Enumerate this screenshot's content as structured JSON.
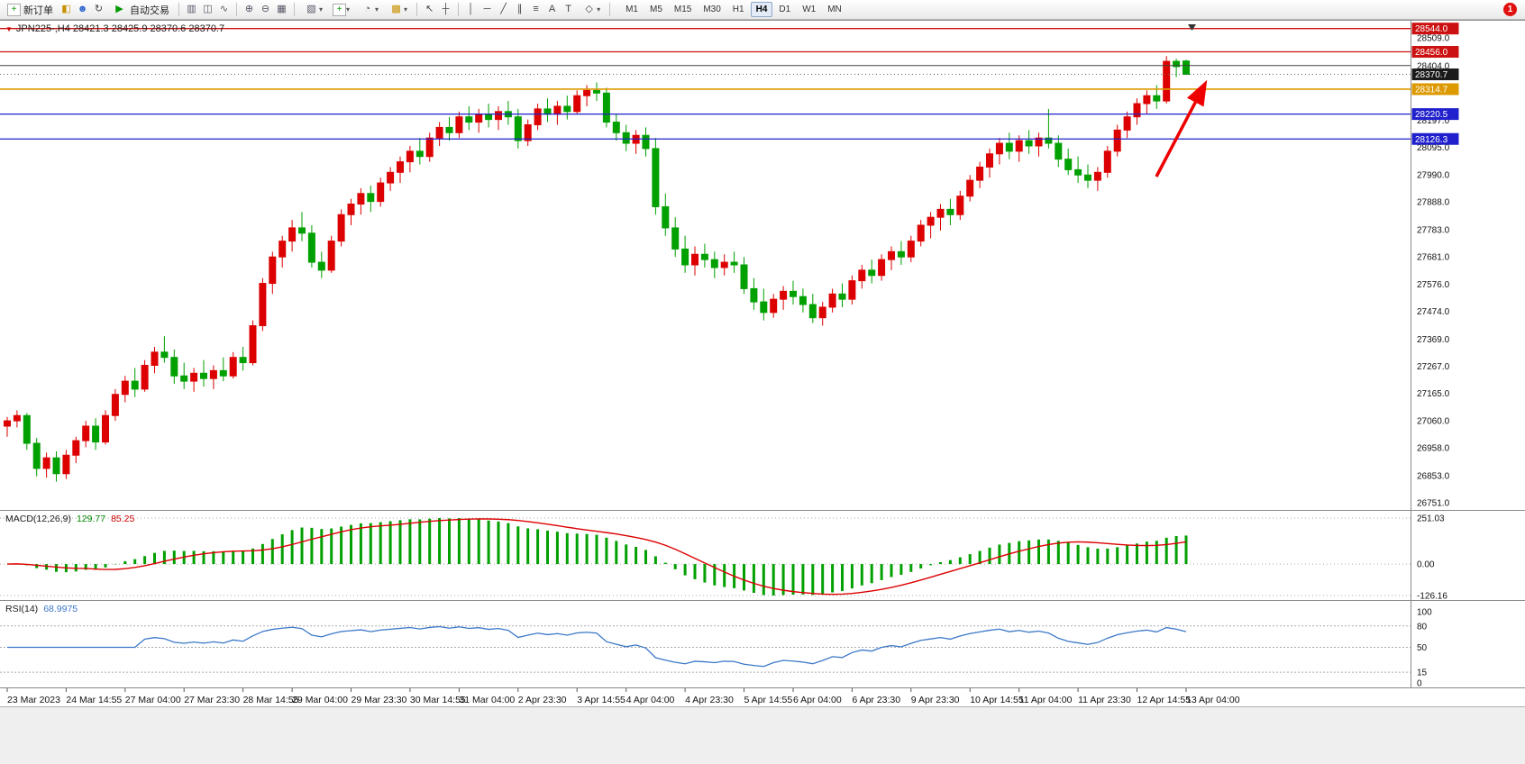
{
  "toolbar": {
    "new_order": "新订单",
    "autotrade": "自动交易",
    "timeframes": [
      "M1",
      "M5",
      "M15",
      "M30",
      "H1",
      "H4",
      "D1",
      "W1",
      "MN"
    ],
    "active_timeframe": "H4",
    "notification_badge": "1"
  },
  "icons": {
    "marker": "▼",
    "new_order": "+",
    "metaeditor": "◧",
    "profile": "☻",
    "refresh": "↻",
    "play": "▶",
    "bars": "▥",
    "candles": "◫",
    "line": "∿",
    "zoom_in": "⊕",
    "zoom_out": "⊖",
    "tile": "▦",
    "new_chart": "▧",
    "indicators": "+",
    "periods": "◔",
    "template": "▩",
    "cursor": "↖",
    "crosshair": "┼",
    "vline": "│",
    "hline": "─",
    "trend": "╱",
    "channel": "∥",
    "fibo": "≡",
    "text": "A",
    "label": "T",
    "shapes": "◇",
    "caret": "▾",
    "shift_marker": "▼"
  },
  "chart": {
    "header": "JPN225-,H4 28421.3 28425.9 28370.6 28370.7",
    "symbol": "JPN225-",
    "timeframe": "H4"
  },
  "indicators": {
    "macd": {
      "name": "MACD(12,26,9)",
      "value_main": "129.77",
      "value_signal": "85.25"
    },
    "rsi": {
      "name": "RSI(14)",
      "value": "68.9975"
    }
  },
  "chart_data": {
    "type": "candlestick",
    "symbol": "JPN225-",
    "timeframe": "H4",
    "ohlc_current": {
      "open": 28421.3,
      "high": 28425.9,
      "low": 28370.6,
      "close": 28370.7
    },
    "price_axis": {
      "max": 28560,
      "min": 26740,
      "labels": [
        "28509.0",
        "28404.0",
        "28197.0",
        "28095.0",
        "27990.0",
        "27888.0",
        "27783.0",
        "27681.0",
        "27576.0",
        "27474.0",
        "27369.0",
        "27267.0",
        "27165.0",
        "27060.0",
        "26958.0",
        "26853.0",
        "26751.0"
      ],
      "badges": [
        {
          "label": "28544.0",
          "color": "#cc1111"
        },
        {
          "label": "28456.0",
          "color": "#cc1111"
        },
        {
          "label": "28370.7",
          "color": "#1a1a1a"
        },
        {
          "label": "28314.7",
          "color": "#dd9900"
        },
        {
          "label": "28220.5",
          "color": "#2020cc"
        },
        {
          "label": "28126.3",
          "color": "#2020cc"
        }
      ]
    },
    "hlines": [
      {
        "price": 28544.0,
        "color": "#cc1111",
        "width": 1.3
      },
      {
        "price": 28456.0,
        "color": "#cc1111",
        "width": 1.3
      },
      {
        "price": 28404.0,
        "color": "#444444",
        "width": 1
      },
      {
        "price": 28314.7,
        "color": "#dd9900",
        "width": 1.6
      },
      {
        "price": 28220.5,
        "color": "#2020cc",
        "width": 1.3
      },
      {
        "price": 28126.3,
        "color": "#2020cc",
        "width": 1.3
      }
    ],
    "current_price": {
      "value": 28370.7,
      "badge_color": "#1a1a1a"
    },
    "colors": {
      "up": "#dd0000",
      "down": "#00a000",
      "macd_hist": "#00a000",
      "macd_signal": "#dd0000",
      "rsi_line": "#3c78c8"
    },
    "macd_axis": {
      "labels": [
        "251.03",
        "0.00",
        "-126.16"
      ]
    },
    "rsi_axis": {
      "labels": [
        "100",
        "80",
        "50",
        "15",
        "0"
      ],
      "levels": [
        80,
        50,
        15
      ]
    },
    "annotation_arrow": {
      "color": "#ee0000"
    },
    "time_labels": [
      [
        0,
        "23 Mar 2023"
      ],
      [
        6,
        "24 Mar 14:55"
      ],
      [
        12,
        "27 Mar 04:00"
      ],
      [
        18,
        "27 Mar 23:30"
      ],
      [
        24,
        "28 Mar 14:55"
      ],
      [
        29,
        "29 Mar 04:00"
      ],
      [
        35,
        "29 Mar 23:30"
      ],
      [
        41,
        "30 Mar 14:55"
      ],
      [
        46,
        "31 Mar 04:00"
      ],
      [
        52,
        "2 Apr 23:30"
      ],
      [
        58,
        "3 Apr 14:55"
      ],
      [
        63,
        "4 Apr 04:00"
      ],
      [
        69,
        "4 Apr 23:30"
      ],
      [
        75,
        "5 Apr 14:55"
      ],
      [
        80,
        "6 Apr 04:00"
      ],
      [
        86,
        "6 Apr 23:30"
      ],
      [
        92,
        "9 Apr 23:30"
      ],
      [
        98,
        "10 Apr 14:55"
      ],
      [
        103,
        "11 Apr 04:00"
      ],
      [
        109,
        "11 Apr 23:30"
      ],
      [
        115,
        "12 Apr 14:55"
      ],
      [
        120,
        "13 Apr 04:00"
      ]
    ],
    "candles": [
      [
        27040,
        27075,
        27000,
        27060
      ],
      [
        27060,
        27100,
        27035,
        27080
      ],
      [
        27080,
        27090,
        26950,
        26975
      ],
      [
        26975,
        26995,
        26850,
        26880
      ],
      [
        26880,
        26940,
        26845,
        26920
      ],
      [
        26920,
        26945,
        26830,
        26860
      ],
      [
        26860,
        26950,
        26840,
        26930
      ],
      [
        26930,
        27000,
        26900,
        26985
      ],
      [
        26985,
        27060,
        26960,
        27040
      ],
      [
        27040,
        27070,
        26950,
        26980
      ],
      [
        26980,
        27100,
        26970,
        27080
      ],
      [
        27080,
        27180,
        27060,
        27160
      ],
      [
        27160,
        27230,
        27130,
        27210
      ],
      [
        27210,
        27260,
        27150,
        27180
      ],
      [
        27180,
        27290,
        27170,
        27270
      ],
      [
        27270,
        27340,
        27240,
        27320
      ],
      [
        27320,
        27380,
        27280,
        27300
      ],
      [
        27300,
        27330,
        27200,
        27230
      ],
      [
        27230,
        27280,
        27180,
        27210
      ],
      [
        27210,
        27260,
        27170,
        27240
      ],
      [
        27240,
        27290,
        27190,
        27220
      ],
      [
        27220,
        27270,
        27180,
        27250
      ],
      [
        27250,
        27300,
        27210,
        27230
      ],
      [
        27230,
        27320,
        27220,
        27300
      ],
      [
        27300,
        27340,
        27250,
        27280
      ],
      [
        27280,
        27440,
        27270,
        27420
      ],
      [
        27420,
        27600,
        27400,
        27580
      ],
      [
        27580,
        27700,
        27540,
        27680
      ],
      [
        27680,
        27760,
        27640,
        27740
      ],
      [
        27740,
        27820,
        27700,
        27790
      ],
      [
        27790,
        27850,
        27740,
        27770
      ],
      [
        27770,
        27800,
        27640,
        27660
      ],
      [
        27660,
        27700,
        27600,
        27630
      ],
      [
        27630,
        27760,
        27620,
        27740
      ],
      [
        27740,
        27860,
        27720,
        27840
      ],
      [
        27840,
        27900,
        27800,
        27880
      ],
      [
        27880,
        27940,
        27840,
        27920
      ],
      [
        27920,
        27950,
        27850,
        27890
      ],
      [
        27890,
        27980,
        27870,
        27960
      ],
      [
        27960,
        28020,
        27930,
        28000
      ],
      [
        28000,
        28060,
        27960,
        28040
      ],
      [
        28040,
        28100,
        28000,
        28080
      ],
      [
        28080,
        28130,
        28030,
        28060
      ],
      [
        28060,
        28150,
        28040,
        28130
      ],
      [
        28130,
        28190,
        28100,
        28170
      ],
      [
        28170,
        28210,
        28120,
        28150
      ],
      [
        28150,
        28230,
        28130,
        28210
      ],
      [
        28210,
        28250,
        28160,
        28190
      ],
      [
        28190,
        28240,
        28150,
        28220
      ],
      [
        28220,
        28260,
        28170,
        28200
      ],
      [
        28200,
        28250,
        28160,
        28230
      ],
      [
        28230,
        28270,
        28180,
        28210
      ],
      [
        28210,
        28240,
        28090,
        28120
      ],
      [
        28120,
        28200,
        28100,
        28180
      ],
      [
        28180,
        28260,
        28160,
        28240
      ],
      [
        28240,
        28280,
        28190,
        28220
      ],
      [
        28220,
        28270,
        28180,
        28250
      ],
      [
        28250,
        28290,
        28200,
        28230
      ],
      [
        28230,
        28310,
        28220,
        28290
      ],
      [
        28290,
        28330,
        28250,
        28310
      ],
      [
        28310,
        28340,
        28270,
        28300
      ],
      [
        28300,
        28320,
        28170,
        28190
      ],
      [
        28190,
        28220,
        28120,
        28150
      ],
      [
        28150,
        28180,
        28080,
        28110
      ],
      [
        28110,
        28160,
        28070,
        28140
      ],
      [
        28140,
        28170,
        28060,
        28090
      ],
      [
        28090,
        28130,
        27840,
        27870
      ],
      [
        27870,
        27920,
        27760,
        27790
      ],
      [
        27790,
        27830,
        27680,
        27710
      ],
      [
        27710,
        27760,
        27620,
        27650
      ],
      [
        27650,
        27720,
        27610,
        27690
      ],
      [
        27690,
        27730,
        27640,
        27670
      ],
      [
        27670,
        27700,
        27600,
        27640
      ],
      [
        27640,
        27690,
        27610,
        27660
      ],
      [
        27660,
        27700,
        27620,
        27650
      ],
      [
        27650,
        27680,
        27540,
        27560
      ],
      [
        27560,
        27600,
        27480,
        27510
      ],
      [
        27510,
        27560,
        27440,
        27470
      ],
      [
        27470,
        27540,
        27450,
        27520
      ],
      [
        27520,
        27570,
        27480,
        27550
      ],
      [
        27550,
        27590,
        27500,
        27530
      ],
      [
        27530,
        27560,
        27470,
        27500
      ],
      [
        27500,
        27540,
        27430,
        27450
      ],
      [
        27450,
        27510,
        27420,
        27490
      ],
      [
        27490,
        27560,
        27470,
        27540
      ],
      [
        27540,
        27580,
        27490,
        27520
      ],
      [
        27520,
        27610,
        27500,
        27590
      ],
      [
        27590,
        27650,
        27560,
        27630
      ],
      [
        27630,
        27670,
        27580,
        27610
      ],
      [
        27610,
        27690,
        27590,
        27670
      ],
      [
        27670,
        27720,
        27630,
        27700
      ],
      [
        27700,
        27740,
        27650,
        27680
      ],
      [
        27680,
        27760,
        27660,
        27740
      ],
      [
        27740,
        27820,
        27720,
        27800
      ],
      [
        27800,
        27850,
        27750,
        27830
      ],
      [
        27830,
        27880,
        27780,
        27860
      ],
      [
        27860,
        27900,
        27800,
        27840
      ],
      [
        27840,
        27930,
        27820,
        27910
      ],
      [
        27910,
        27990,
        27890,
        27970
      ],
      [
        27970,
        28040,
        27940,
        28020
      ],
      [
        28020,
        28090,
        27980,
        28070
      ],
      [
        28070,
        28130,
        28030,
        28110
      ],
      [
        28110,
        28150,
        28050,
        28080
      ],
      [
        28080,
        28140,
        28040,
        28120
      ],
      [
        28120,
        28160,
        28070,
        28100
      ],
      [
        28100,
        28150,
        28060,
        28130
      ],
      [
        28130,
        28240,
        28090,
        28110
      ],
      [
        28110,
        28140,
        28020,
        28050
      ],
      [
        28050,
        28090,
        27990,
        28010
      ],
      [
        28010,
        28060,
        27960,
        27990
      ],
      [
        27990,
        28030,
        27940,
        27970
      ],
      [
        27970,
        28020,
        27930,
        28000
      ],
      [
        28000,
        28100,
        27980,
        28080
      ],
      [
        28080,
        28180,
        28060,
        28160
      ],
      [
        28160,
        28230,
        28130,
        28210
      ],
      [
        28210,
        28280,
        28180,
        28260
      ],
      [
        28260,
        28310,
        28220,
        28290
      ],
      [
        28290,
        28330,
        28240,
        28270
      ],
      [
        28270,
        28440,
        28260,
        28420
      ],
      [
        28420,
        28430,
        28360,
        28400
      ],
      [
        28421.3,
        28425.9,
        28370.6,
        28370.7
      ]
    ]
  }
}
